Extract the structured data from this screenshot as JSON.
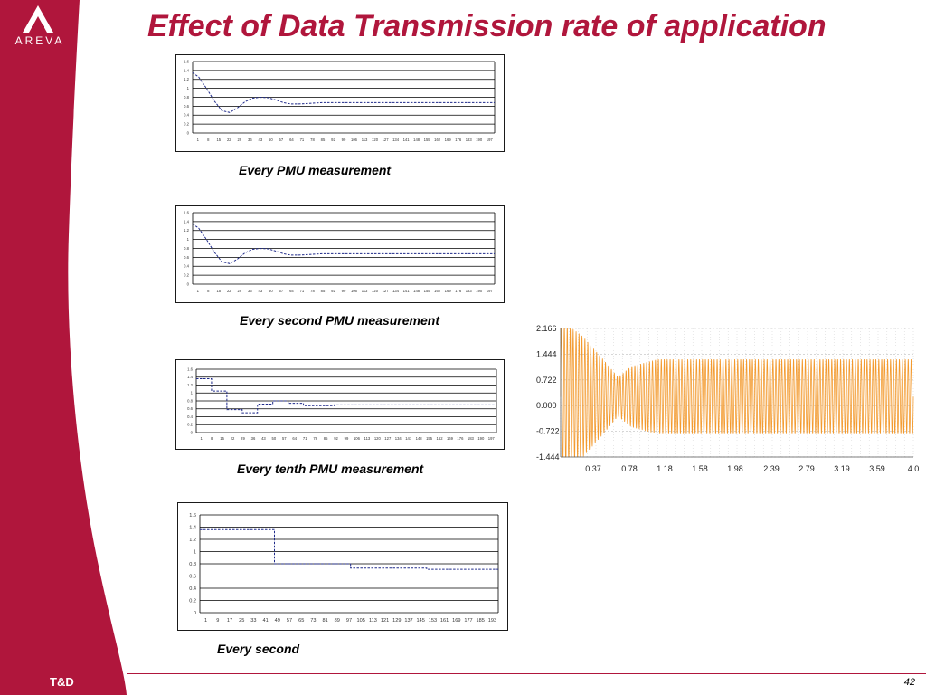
{
  "slide": {
    "title": "Effect of Data Transmission rate of application",
    "logo_text": "AREVA",
    "footer_label": "T&D",
    "page_number": "42",
    "colors": {
      "brand": "#b0163c",
      "series": "#1f2a8a",
      "oscillation": "#f39a2e"
    }
  },
  "chart_data": [
    {
      "type": "line",
      "caption": "Every PMU measurement",
      "y_ticks": [
        "0",
        "0.2",
        "0.4",
        "0.6",
        "0.8",
        "1",
        "1.2",
        "1.4",
        "1.6"
      ],
      "ylim": [
        0,
        1.6
      ],
      "x_ticks": [
        "1",
        "8",
        "15",
        "22",
        "29",
        "36",
        "43",
        "50",
        "57",
        "64",
        "71",
        "78",
        "85",
        "92",
        "99",
        "106",
        "113",
        "120",
        "127",
        "134",
        "141",
        "148",
        "155",
        "162",
        "169",
        "176",
        "183",
        "190",
        "197"
      ],
      "xlim": [
        1,
        197
      ],
      "series": [
        {
          "x": [
            1,
            5,
            10,
            15,
            20,
            25,
            30,
            35,
            40,
            45,
            50,
            55,
            60,
            65,
            70,
            75,
            80,
            85,
            90,
            100,
            120,
            150,
            180,
            197
          ],
          "y": [
            1.35,
            1.25,
            1.0,
            0.72,
            0.5,
            0.46,
            0.56,
            0.7,
            0.78,
            0.8,
            0.79,
            0.74,
            0.68,
            0.65,
            0.65,
            0.66,
            0.67,
            0.68,
            0.68,
            0.68,
            0.68,
            0.68,
            0.68,
            0.68
          ]
        }
      ]
    },
    {
      "type": "line",
      "caption": "Every second PMU measurement",
      "y_ticks": [
        "0",
        "0.2",
        "0.4",
        "0.6",
        "0.8",
        "1",
        "1.2",
        "1.4",
        "1.6"
      ],
      "ylim": [
        0,
        1.6
      ],
      "x_ticks": [
        "1",
        "8",
        "15",
        "22",
        "29",
        "36",
        "43",
        "50",
        "57",
        "64",
        "71",
        "78",
        "85",
        "92",
        "99",
        "106",
        "113",
        "120",
        "127",
        "134",
        "141",
        "148",
        "155",
        "162",
        "169",
        "176",
        "183",
        "190",
        "197"
      ],
      "xlim": [
        1,
        197
      ],
      "series": [
        {
          "x": [
            1,
            5,
            10,
            15,
            20,
            25,
            30,
            35,
            40,
            45,
            50,
            55,
            60,
            65,
            70,
            75,
            80,
            85,
            90,
            100,
            120,
            150,
            180,
            197
          ],
          "y": [
            1.35,
            1.25,
            1.0,
            0.72,
            0.5,
            0.46,
            0.56,
            0.7,
            0.78,
            0.8,
            0.79,
            0.74,
            0.68,
            0.65,
            0.65,
            0.66,
            0.67,
            0.68,
            0.68,
            0.68,
            0.68,
            0.68,
            0.68,
            0.68
          ]
        }
      ]
    },
    {
      "type": "line",
      "step": true,
      "caption": "Every tenth PMU measurement",
      "y_ticks": [
        "0",
        "0.2",
        "0.4",
        "0.6",
        "0.8",
        "1",
        "1.2",
        "1.4",
        "1.6"
      ],
      "ylim": [
        0,
        1.6
      ],
      "x_ticks": [
        "1",
        "8",
        "15",
        "22",
        "29",
        "36",
        "43",
        "50",
        "57",
        "64",
        "71",
        "78",
        "85",
        "92",
        "99",
        "106",
        "113",
        "120",
        "127",
        "134",
        "141",
        "148",
        "155",
        "162",
        "169",
        "176",
        "183",
        "190",
        "197"
      ],
      "xlim": [
        1,
        197
      ],
      "series": [
        {
          "x": [
            1,
            11,
            21,
            31,
            41,
            51,
            61,
            71,
            81,
            91,
            101,
            111,
            121,
            131,
            141,
            151,
            161,
            171,
            181,
            191,
            197
          ],
          "y": [
            1.36,
            1.05,
            0.58,
            0.5,
            0.72,
            0.8,
            0.74,
            0.68,
            0.68,
            0.7,
            0.7,
            0.7,
            0.7,
            0.7,
            0.7,
            0.7,
            0.7,
            0.7,
            0.7,
            0.7,
            0.7
          ]
        }
      ]
    },
    {
      "type": "line",
      "step": true,
      "caption": "Every second",
      "y_ticks": [
        "0",
        "0.2",
        "0.4",
        "0.6",
        "0.8",
        "1",
        "1.2",
        "1.4",
        "1.6"
      ],
      "ylim": [
        0,
        1.6
      ],
      "x_ticks": [
        "1",
        "9",
        "17",
        "25",
        "33",
        "41",
        "49",
        "57",
        "65",
        "73",
        "81",
        "89",
        "97",
        "105",
        "113",
        "121",
        "129",
        "137",
        "145",
        "153",
        "161",
        "169",
        "177",
        "185",
        "193"
      ],
      "xlim": [
        1,
        197
      ],
      "series": [
        {
          "x": [
            1,
            50,
            100,
            150,
            197
          ],
          "y": [
            1.36,
            0.8,
            0.73,
            0.71,
            0.71
          ]
        }
      ]
    },
    {
      "type": "line",
      "y_ticks": [
        "2.166",
        "1.444",
        "0.722",
        "0.000",
        "-0.722",
        "-1.444"
      ],
      "ylim": [
        -1.444,
        2.166
      ],
      "x_ticks": [
        "0.37",
        "0.78",
        "1.18",
        "1.58",
        "1.98",
        "2.39",
        "2.79",
        "3.19",
        "3.59",
        "4.0"
      ],
      "xlim": [
        0,
        4.0
      ],
      "series": [
        {
          "name": "",
          "frequency_hz": 30,
          "envelope": {
            "t": [
              0,
              0.25,
              0.5,
              0.65,
              0.8,
              1.1,
              1.5,
              2.0,
              2.5,
              3.0,
              4.0
            ],
            "amp": [
              2.15,
              1.7,
              1.0,
              0.55,
              0.85,
              1.05,
              1.05,
              1.05,
              1.05,
              1.05,
              1.05
            ]
          },
          "offset": 0.25
        }
      ]
    }
  ]
}
